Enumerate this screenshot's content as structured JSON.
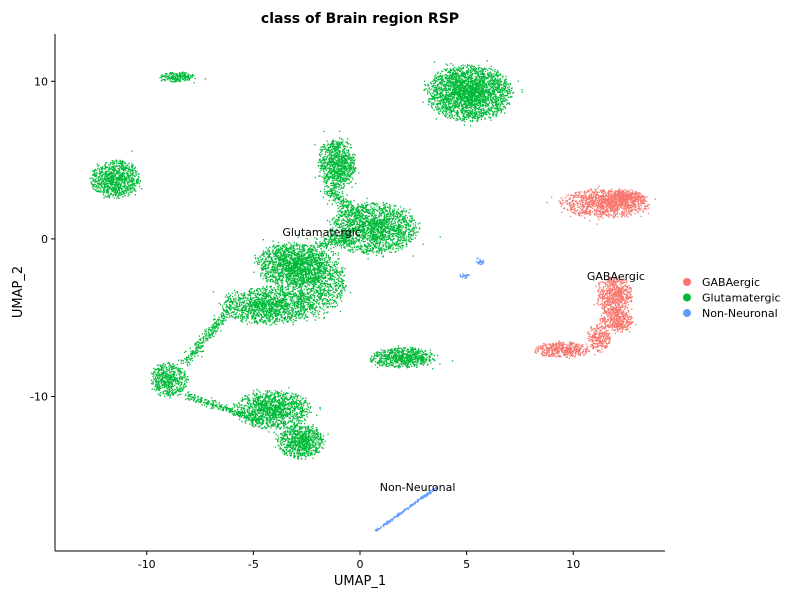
{
  "chart_data": {
    "type": "scatter",
    "title": "class of Brain region RSP",
    "xlabel": "UMAP_1",
    "ylabel": "UMAP_2",
    "xlim": [
      -14.3,
      14.3
    ],
    "ylim": [
      -19.8,
      13.0
    ],
    "xticks": [
      -10,
      -5,
      0,
      5,
      10
    ],
    "yticks": [
      -10,
      0,
      10
    ],
    "grid": false,
    "legend_position": "right",
    "series": [
      {
        "name": "GABAergic",
        "color": "#F8766D",
        "clusters": [
          {
            "cx": 11.5,
            "cy": 2.3,
            "rx": 1.9,
            "ry": 0.85,
            "n": 1100
          },
          {
            "cx": 12.4,
            "cy": 2.6,
            "rx": 0.8,
            "ry": 0.5,
            "n": 300
          },
          {
            "cx": 11.9,
            "cy": -3.5,
            "rx": 0.75,
            "ry": 1.1,
            "n": 600
          },
          {
            "cx": 12.0,
            "cy": -5.1,
            "rx": 0.7,
            "ry": 0.75,
            "n": 400
          },
          {
            "cx": 11.2,
            "cy": -6.2,
            "rx": 0.5,
            "ry": 0.8,
            "n": 250
          },
          {
            "cx": 9.5,
            "cy": -7.0,
            "rx": 1.2,
            "ry": 0.45,
            "n": 450
          }
        ],
        "label": {
          "text": "GABAergic",
          "x": 12.0,
          "y": -2.6
        }
      },
      {
        "name": "Glutamatergic",
        "color": "#00BA38",
        "clusters": [
          {
            "cx": -8.6,
            "cy": 10.3,
            "rx": 0.8,
            "ry": 0.3,
            "n": 200
          },
          {
            "cx": 5.1,
            "cy": 9.3,
            "rx": 1.8,
            "ry": 1.6,
            "n": 2600
          },
          {
            "cx": -11.5,
            "cy": 3.8,
            "rx": 1.05,
            "ry": 1.1,
            "n": 900
          },
          {
            "cx": -1.1,
            "cy": 4.8,
            "rx": 0.8,
            "ry": 1.5,
            "n": 900
          },
          {
            "cx": 0.6,
            "cy": 0.7,
            "rx": 1.9,
            "ry": 1.5,
            "n": 1800
          },
          {
            "cx": -3.2,
            "cy": -1.6,
            "rx": 1.5,
            "ry": 1.3,
            "n": 1400
          },
          {
            "cx": -4.3,
            "cy": -4.2,
            "rx": 2.0,
            "ry": 1.1,
            "n": 1400
          },
          {
            "cx": -2.0,
            "cy": -2.6,
            "rx": 1.2,
            "ry": 2.0,
            "n": 900
          },
          {
            "cx": 2.0,
            "cy": -7.5,
            "rx": 1.4,
            "ry": 0.6,
            "n": 700
          },
          {
            "cx": -9.0,
            "cy": -8.9,
            "rx": 0.8,
            "ry": 1.0,
            "n": 500
          },
          {
            "cx": -4.1,
            "cy": -10.8,
            "rx": 1.6,
            "ry": 1.1,
            "n": 1200
          },
          {
            "cx": -2.8,
            "cy": -12.8,
            "rx": 1.0,
            "ry": 1.0,
            "n": 800
          }
        ],
        "bridges": [
          {
            "x1": -6.3,
            "y1": -4.6,
            "x2": -8.2,
            "y2": -7.8,
            "width": 0.35,
            "n": 250
          },
          {
            "x1": -8.2,
            "y1": -9.9,
            "x2": -4.6,
            "y2": -11.5,
            "width": 0.3,
            "n": 250
          },
          {
            "x1": -1.5,
            "y1": 3.2,
            "x2": -0.2,
            "y2": 1.5,
            "width": 0.5,
            "n": 200
          },
          {
            "x1": -2.0,
            "y1": -0.3,
            "x2": -0.5,
            "y2": 0.1,
            "width": 0.5,
            "n": 150
          }
        ],
        "label": {
          "text": "Glutamatergic",
          "x": -1.8,
          "y": 0.2
        }
      },
      {
        "name": "Non-Neuronal",
        "color": "#619CFF",
        "clusters": [
          {
            "cx": 5.6,
            "cy": -1.4,
            "rx": 0.2,
            "ry": 0.2,
            "n": 30
          },
          {
            "cx": 4.9,
            "cy": -2.3,
            "rx": 0.25,
            "ry": 0.12,
            "n": 25
          }
        ],
        "bridges": [
          {
            "x1": 0.7,
            "y1": -18.5,
            "x2": 3.6,
            "y2": -15.7,
            "width": 0.08,
            "n": 220
          }
        ],
        "label": {
          "text": "Non-Neuronal",
          "x": 2.7,
          "y": -16.0
        }
      }
    ]
  }
}
